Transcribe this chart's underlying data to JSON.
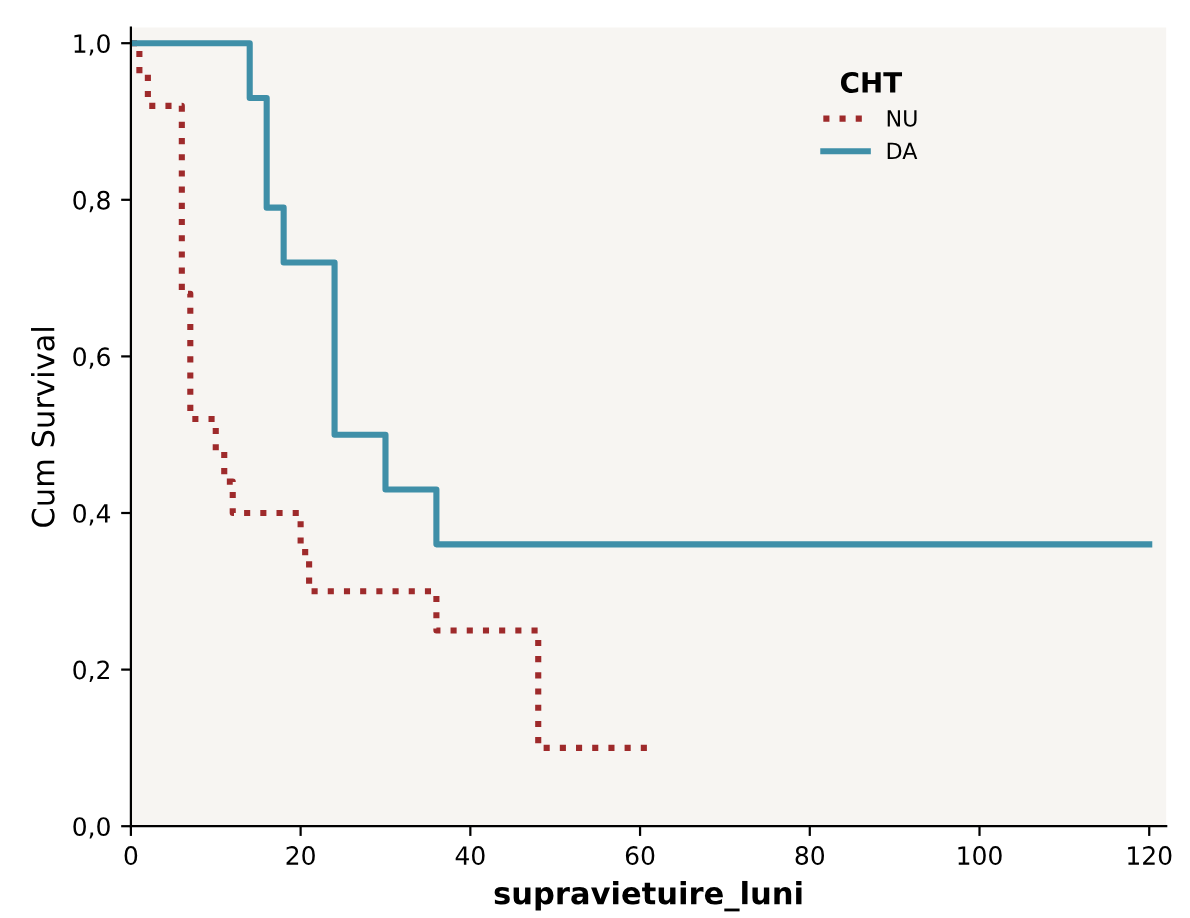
{
  "chart_data": {
    "type": "step",
    "xlabel": "supravietuire_luni",
    "ylabel": "Cum Survival",
    "legend_title": "CHT",
    "legend": "top right",
    "grid": false,
    "xlim": [
      0,
      122
    ],
    "xticks": [
      0,
      20,
      40,
      60,
      80,
      100,
      120
    ],
    "ylim": [
      0,
      1.02
    ],
    "yticks": [
      {
        "value": 0,
        "label": "0,0"
      },
      {
        "value": 0.2,
        "label": "0,2"
      },
      {
        "value": 0.4,
        "label": "0,4"
      },
      {
        "value": 0.6,
        "label": "0,6"
      },
      {
        "value": 0.8,
        "label": "0,8"
      },
      {
        "value": 1.0,
        "label": "1,0"
      }
    ],
    "series": [
      {
        "name": "NU",
        "color": "#9e2a2b",
        "line_style": "dotted",
        "x": [
          0,
          1,
          2,
          6,
          7,
          10,
          11,
          12,
          20,
          21,
          36,
          48,
          61
        ],
        "values": [
          1.0,
          0.96,
          0.92,
          0.68,
          0.52,
          0.48,
          0.44,
          0.4,
          0.35,
          0.3,
          0.25,
          0.1,
          0.1
        ]
      },
      {
        "name": "DA",
        "color": "#3f8fa8",
        "line_style": "solid",
        "x": [
          0,
          14,
          16,
          18,
          24,
          30,
          36,
          120
        ],
        "values": [
          1.0,
          0.93,
          0.79,
          0.72,
          0.5,
          0.43,
          0.36,
          0.36
        ]
      }
    ]
  }
}
